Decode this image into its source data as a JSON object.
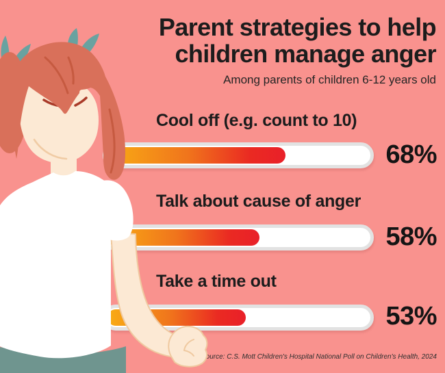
{
  "title": {
    "line1": "Parent strategies to help",
    "line2": "children manage anger"
  },
  "subtitle": "Among parents of children 6-12 years old",
  "source": "Source: C.S. Mott Children's Hospital National Poll on Children's Health, 2024",
  "chart_data": {
    "type": "bar",
    "orientation": "horizontal",
    "title": "Parent strategies to help children manage anger",
    "subtitle": "Among parents of children 6-12 years old",
    "categories": [
      "Cool off (e.g. count to 10)",
      "Talk about cause of anger",
      "Take a time out"
    ],
    "values": [
      68,
      58,
      53
    ],
    "value_labels": [
      "68%",
      "58%",
      "53%"
    ],
    "xlim": [
      0,
      100
    ],
    "grid": false,
    "legend": false,
    "bar_style": {
      "track_color": "#FFFFFF",
      "track_border_color": "#E2E2E2",
      "fill_gradient": [
        "#F9AC14",
        "#F0751C",
        "#EA2A22",
        "#E92029"
      ]
    }
  },
  "illustration": {
    "description": "angry girl with auburn pigtails, teal hair bows, white t-shirt and clenched fist",
    "colors": {
      "background": "#F9928E",
      "hair": "#D9705A",
      "hair_strand": "#C65A40",
      "skin": "#FCE9D4",
      "skin_outline": "#EFC9A0",
      "bow": "#69A2A0",
      "skirt": "#6F958F",
      "shirt": "#FFFFFF",
      "eyes": "#A93A28"
    }
  },
  "colors": {
    "background": "#F9928E",
    "text": "#1C1C1C"
  }
}
